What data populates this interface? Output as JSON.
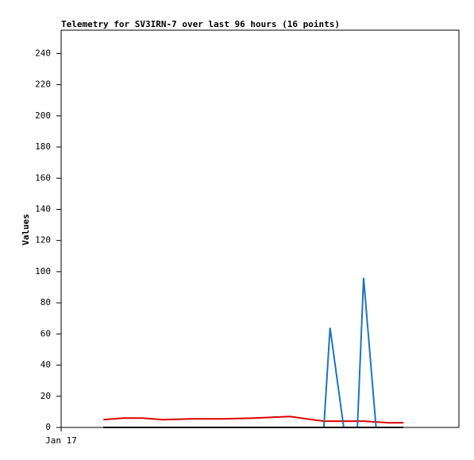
{
  "chart_data": {
    "type": "line",
    "title": "Telemetry for SV3IRN-7 over last 96 hours (16 points)",
    "ylabel": "Values",
    "x": [
      10.2,
      14.9,
      19.7,
      24.5,
      31.2,
      38.9,
      46.5,
      55.2,
      63.4,
      64.9,
      68.2,
      71.5,
      73.0,
      76.0,
      79.1,
      82.6
    ],
    "xlim": [
      0,
      96
    ],
    "xticks": [
      {
        "value": 0,
        "label": "Jan 17"
      }
    ],
    "ylim": [
      0,
      255
    ],
    "yticks": [
      0,
      20,
      40,
      60,
      80,
      100,
      120,
      140,
      160,
      180,
      200,
      220,
      240
    ],
    "series": [
      {
        "color": "#dd0000",
        "values": [
          5,
          6,
          6,
          5,
          5.5,
          5.5,
          6,
          7,
          4,
          4,
          4,
          4,
          4,
          3.5,
          3,
          3
        ]
      },
      {
        "color": "#1e73be",
        "values": [
          0,
          0,
          0,
          0,
          0,
          0,
          0,
          0,
          0,
          64,
          0,
          0,
          96,
          0,
          0,
          0
        ]
      },
      {
        "color": "#000000",
        "values": [
          0,
          0,
          0,
          0,
          0,
          0,
          0,
          0,
          0,
          0,
          0,
          0,
          0,
          0,
          0,
          0
        ]
      }
    ]
  }
}
